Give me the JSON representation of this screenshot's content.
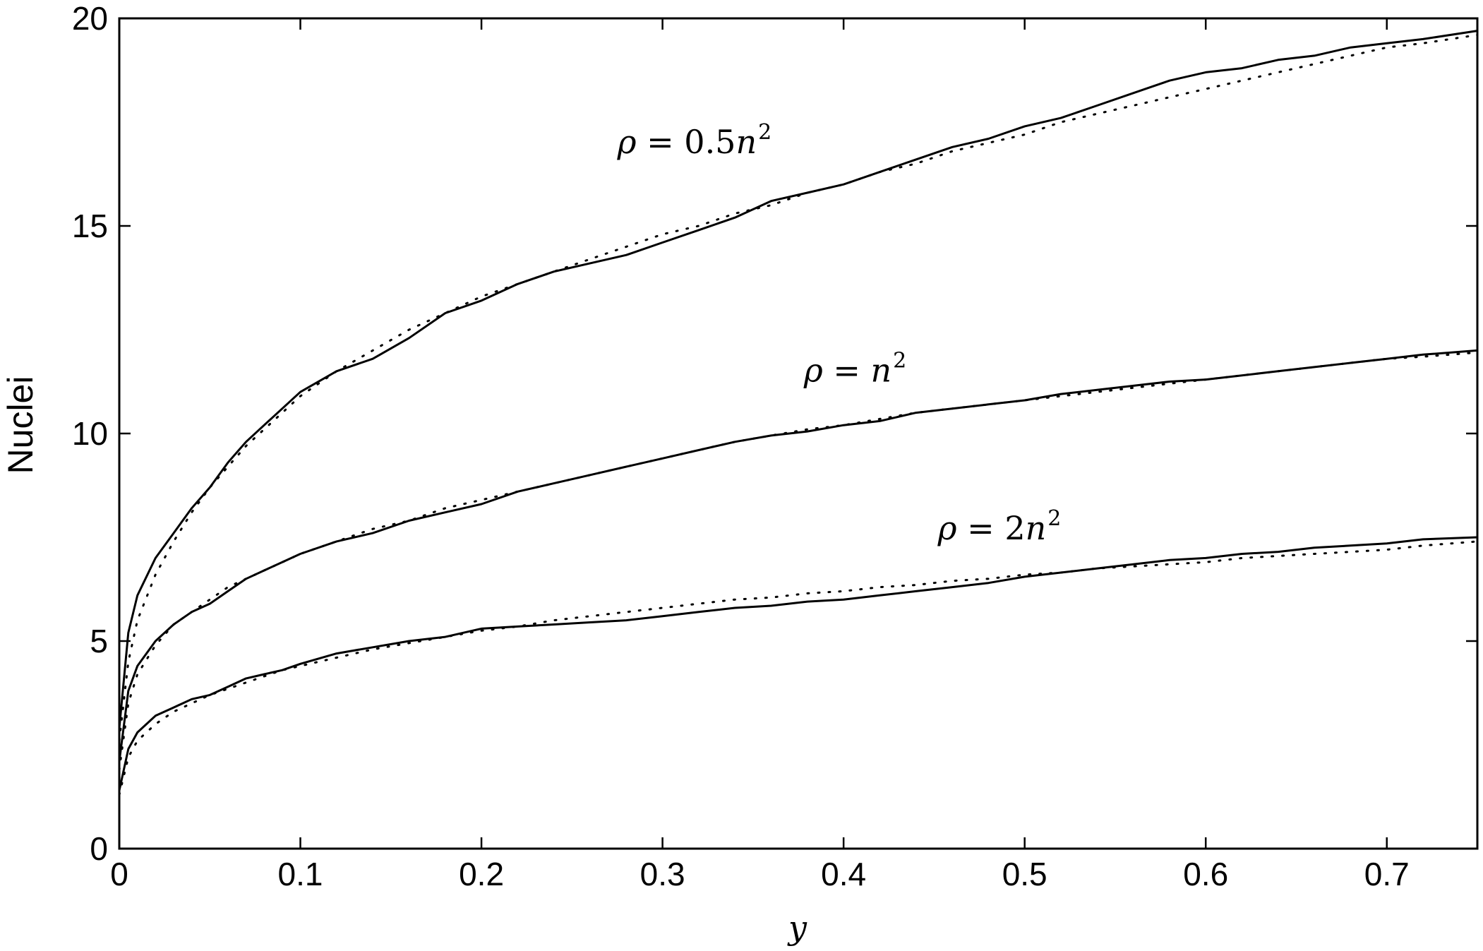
{
  "chart_data": {
    "type": "line",
    "title": "",
    "xlabel": "y",
    "ylabel": "Nuclei",
    "xlim": [
      0,
      0.75
    ],
    "ylim": [
      0,
      20
    ],
    "xticks": [
      0,
      0.1,
      0.2,
      0.3,
      0.4,
      0.5,
      0.6,
      0.7
    ],
    "xtick_labels": [
      "0",
      "0.1",
      "0.2",
      "0.3",
      "0.4",
      "0.5",
      "0.6",
      "0.7"
    ],
    "yticks": [
      0,
      5,
      10,
      15,
      20
    ],
    "ytick_labels": [
      "0",
      "5",
      "10",
      "15",
      "20"
    ],
    "grid": false,
    "legend": "none",
    "annotations": [
      {
        "rho": "ρ",
        "eq": " = ",
        "coef": "0.5",
        "var": "n",
        "sup": "2",
        "x": 0.275,
        "y": 16.75
      },
      {
        "rho": "ρ",
        "eq": " = ",
        "coef": "",
        "var": "n",
        "sup": "2",
        "x": 0.378,
        "y": 11.25
      },
      {
        "rho": "ρ",
        "eq": " = ",
        "coef": "2",
        "var": "n",
        "sup": "2",
        "x": 0.452,
        "y": 7.45
      }
    ],
    "series": [
      {
        "style": "solid",
        "x": [
          0,
          0.005,
          0.01,
          0.02,
          0.03,
          0.04,
          0.05,
          0.06,
          0.07,
          0.08,
          0.09,
          0.1,
          0.12,
          0.14,
          0.16,
          0.18,
          0.2,
          0.22,
          0.24,
          0.26,
          0.28,
          0.3,
          0.32,
          0.34,
          0.36,
          0.38,
          0.4,
          0.42,
          0.44,
          0.46,
          0.48,
          0.5,
          0.52,
          0.54,
          0.56,
          0.58,
          0.6,
          0.62,
          0.64,
          0.66,
          0.68,
          0.7,
          0.72,
          0.75
        ],
        "y": [
          2.9,
          5.2,
          6.1,
          7.0,
          7.6,
          8.2,
          8.7,
          9.3,
          9.8,
          10.2,
          10.6,
          11.0,
          11.5,
          11.8,
          12.3,
          12.9,
          13.2,
          13.6,
          13.9,
          14.1,
          14.3,
          14.6,
          14.9,
          15.2,
          15.6,
          15.8,
          16.0,
          16.3,
          16.6,
          16.9,
          17.1,
          17.4,
          17.6,
          17.9,
          18.2,
          18.5,
          18.7,
          18.8,
          19.0,
          19.1,
          19.3,
          19.4,
          19.5,
          19.7
        ]
      },
      {
        "style": "dotted",
        "x": [
          0,
          0.005,
          0.01,
          0.02,
          0.03,
          0.04,
          0.05,
          0.06,
          0.07,
          0.08,
          0.09,
          0.1,
          0.12,
          0.14,
          0.16,
          0.18,
          0.2,
          0.22,
          0.24,
          0.26,
          0.28,
          0.3,
          0.32,
          0.34,
          0.36,
          0.38,
          0.4,
          0.42,
          0.44,
          0.46,
          0.48,
          0.5,
          0.52,
          0.54,
          0.56,
          0.58,
          0.6,
          0.62,
          0.64,
          0.66,
          0.68,
          0.7,
          0.72,
          0.75
        ],
        "y": [
          2.6,
          4.5,
          5.5,
          6.6,
          7.4,
          8.1,
          8.7,
          9.2,
          9.7,
          10.1,
          10.5,
          10.9,
          11.5,
          12.0,
          12.5,
          12.9,
          13.3,
          13.6,
          13.9,
          14.2,
          14.5,
          14.8,
          15.0,
          15.3,
          15.5,
          15.8,
          16.0,
          16.3,
          16.5,
          16.8,
          17.0,
          17.2,
          17.5,
          17.7,
          17.9,
          18.1,
          18.3,
          18.5,
          18.7,
          18.9,
          19.1,
          19.3,
          19.4,
          19.6
        ]
      },
      {
        "style": "solid",
        "x": [
          0,
          0.005,
          0.01,
          0.02,
          0.03,
          0.04,
          0.05,
          0.06,
          0.07,
          0.08,
          0.09,
          0.1,
          0.12,
          0.14,
          0.16,
          0.18,
          0.2,
          0.22,
          0.24,
          0.26,
          0.28,
          0.3,
          0.32,
          0.34,
          0.36,
          0.38,
          0.4,
          0.42,
          0.44,
          0.46,
          0.48,
          0.5,
          0.52,
          0.54,
          0.56,
          0.58,
          0.6,
          0.62,
          0.64,
          0.66,
          0.68,
          0.7,
          0.72,
          0.75
        ],
        "y": [
          2.1,
          3.8,
          4.4,
          5.0,
          5.4,
          5.7,
          5.9,
          6.2,
          6.5,
          6.7,
          6.9,
          7.1,
          7.4,
          7.6,
          7.9,
          8.1,
          8.3,
          8.6,
          8.8,
          9.0,
          9.2,
          9.4,
          9.6,
          9.8,
          9.95,
          10.05,
          10.2,
          10.3,
          10.5,
          10.6,
          10.7,
          10.8,
          10.95,
          11.05,
          11.15,
          11.25,
          11.3,
          11.4,
          11.5,
          11.6,
          11.7,
          11.8,
          11.9,
          12.0
        ]
      },
      {
        "style": "dotted",
        "x": [
          0,
          0.005,
          0.01,
          0.02,
          0.03,
          0.04,
          0.05,
          0.06,
          0.07,
          0.08,
          0.09,
          0.1,
          0.12,
          0.14,
          0.16,
          0.18,
          0.2,
          0.22,
          0.24,
          0.26,
          0.28,
          0.3,
          0.32,
          0.34,
          0.36,
          0.38,
          0.4,
          0.42,
          0.44,
          0.46,
          0.48,
          0.5,
          0.52,
          0.54,
          0.56,
          0.58,
          0.6,
          0.62,
          0.64,
          0.66,
          0.68,
          0.7,
          0.72,
          0.75
        ],
        "y": [
          1.9,
          3.5,
          4.2,
          4.9,
          5.4,
          5.7,
          6.0,
          6.3,
          6.5,
          6.7,
          6.9,
          7.1,
          7.4,
          7.7,
          7.9,
          8.2,
          8.4,
          8.6,
          8.8,
          9.0,
          9.2,
          9.4,
          9.6,
          9.8,
          9.95,
          10.1,
          10.2,
          10.35,
          10.5,
          10.6,
          10.7,
          10.8,
          10.9,
          11.0,
          11.1,
          11.2,
          11.3,
          11.4,
          11.5,
          11.6,
          11.7,
          11.8,
          11.85,
          11.95
        ]
      },
      {
        "style": "solid",
        "x": [
          0,
          0.005,
          0.01,
          0.02,
          0.03,
          0.04,
          0.05,
          0.06,
          0.07,
          0.08,
          0.09,
          0.1,
          0.12,
          0.14,
          0.16,
          0.18,
          0.2,
          0.22,
          0.24,
          0.26,
          0.28,
          0.3,
          0.32,
          0.34,
          0.36,
          0.38,
          0.4,
          0.42,
          0.44,
          0.46,
          0.48,
          0.5,
          0.52,
          0.54,
          0.56,
          0.58,
          0.6,
          0.62,
          0.64,
          0.66,
          0.68,
          0.7,
          0.72,
          0.75
        ],
        "y": [
          1.4,
          2.4,
          2.8,
          3.2,
          3.4,
          3.6,
          3.7,
          3.9,
          4.1,
          4.2,
          4.3,
          4.45,
          4.7,
          4.85,
          5.0,
          5.1,
          5.3,
          5.35,
          5.4,
          5.45,
          5.5,
          5.6,
          5.7,
          5.8,
          5.85,
          5.95,
          6.0,
          6.1,
          6.2,
          6.3,
          6.4,
          6.55,
          6.65,
          6.75,
          6.85,
          6.95,
          7.0,
          7.1,
          7.15,
          7.25,
          7.3,
          7.35,
          7.45,
          7.5
        ]
      },
      {
        "style": "dotted",
        "x": [
          0,
          0.005,
          0.01,
          0.02,
          0.03,
          0.04,
          0.05,
          0.06,
          0.07,
          0.08,
          0.09,
          0.1,
          0.12,
          0.14,
          0.16,
          0.18,
          0.2,
          0.22,
          0.24,
          0.26,
          0.28,
          0.3,
          0.32,
          0.34,
          0.36,
          0.38,
          0.4,
          0.42,
          0.44,
          0.46,
          0.48,
          0.5,
          0.52,
          0.54,
          0.56,
          0.58,
          0.6,
          0.62,
          0.64,
          0.66,
          0.68,
          0.7,
          0.72,
          0.75
        ],
        "y": [
          1.3,
          2.2,
          2.6,
          3.0,
          3.3,
          3.5,
          3.7,
          3.85,
          4.0,
          4.15,
          4.3,
          4.4,
          4.6,
          4.8,
          4.95,
          5.1,
          5.25,
          5.35,
          5.5,
          5.6,
          5.7,
          5.8,
          5.9,
          6.0,
          6.05,
          6.15,
          6.2,
          6.3,
          6.35,
          6.45,
          6.5,
          6.6,
          6.65,
          6.75,
          6.8,
          6.85,
          6.9,
          7.0,
          7.05,
          7.1,
          7.15,
          7.2,
          7.3,
          7.4
        ]
      }
    ]
  }
}
